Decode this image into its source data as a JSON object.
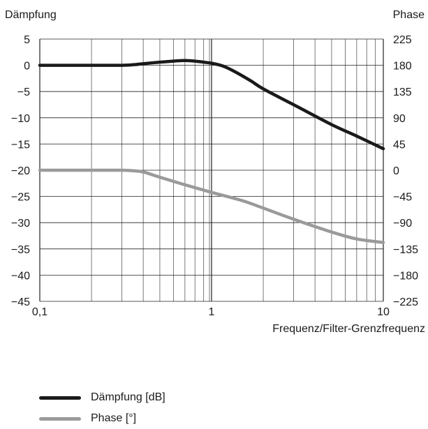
{
  "chart_data": {
    "type": "line",
    "xscale": "log",
    "xlim": [
      0.1,
      10
    ],
    "xticks": [
      "0,1",
      "1",
      "10"
    ],
    "xlabel": "Frequenz/Filter-Grenzfrequenz",
    "y_left": {
      "label": "Dämpfung",
      "ylim": [
        -45,
        5
      ],
      "ticks": [
        5,
        0,
        -5,
        -10,
        -15,
        -20,
        -25,
        -30,
        -35,
        -40,
        -45
      ],
      "tick_labels": [
        "5",
        "0",
        "−5",
        "−10",
        "−15",
        "−20",
        "−25",
        "−30",
        "−35",
        "−40",
        "−45"
      ]
    },
    "y_right": {
      "label": "Phase",
      "ylim": [
        -225,
        225
      ],
      "ticks": [
        225,
        180,
        135,
        90,
        45,
        0,
        -45,
        -90,
        -135,
        -180,
        -225
      ],
      "tick_labels": [
        "225",
        "180",
        "135",
        "90",
        "45",
        "0",
        "−45",
        "−90",
        "−135",
        "−180",
        "−225"
      ]
    },
    "grid": true,
    "series": [
      {
        "name": "Dämpfung [dB]",
        "axis": "left",
        "color": "#1a1a1a",
        "x": [
          0.1,
          0.2,
          0.3,
          0.35,
          0.4,
          0.5,
          0.6,
          0.7,
          0.8,
          0.9,
          1.0,
          1.1,
          1.2,
          1.4,
          1.7,
          2,
          3,
          5,
          7,
          10
        ],
        "y": [
          0,
          0,
          0,
          0.1,
          0.3,
          0.6,
          0.8,
          0.9,
          0.8,
          0.6,
          0.4,
          0.1,
          -0.3,
          -1.4,
          -3,
          -4.5,
          -7.5,
          -11.3,
          -13.5,
          -15.9
        ]
      },
      {
        "name": "Phase [°]",
        "axis": "right",
        "color": "#9a9a9a",
        "x": [
          0.1,
          0.2,
          0.3,
          0.35,
          0.4,
          0.5,
          0.7,
          1.0,
          1.5,
          2,
          3,
          5,
          7,
          10
        ],
        "y": [
          0,
          0,
          0,
          -1,
          -3,
          -12,
          -25,
          -38,
          -52,
          -65,
          -84,
          -106,
          -118,
          -124
        ]
      }
    ]
  }
}
